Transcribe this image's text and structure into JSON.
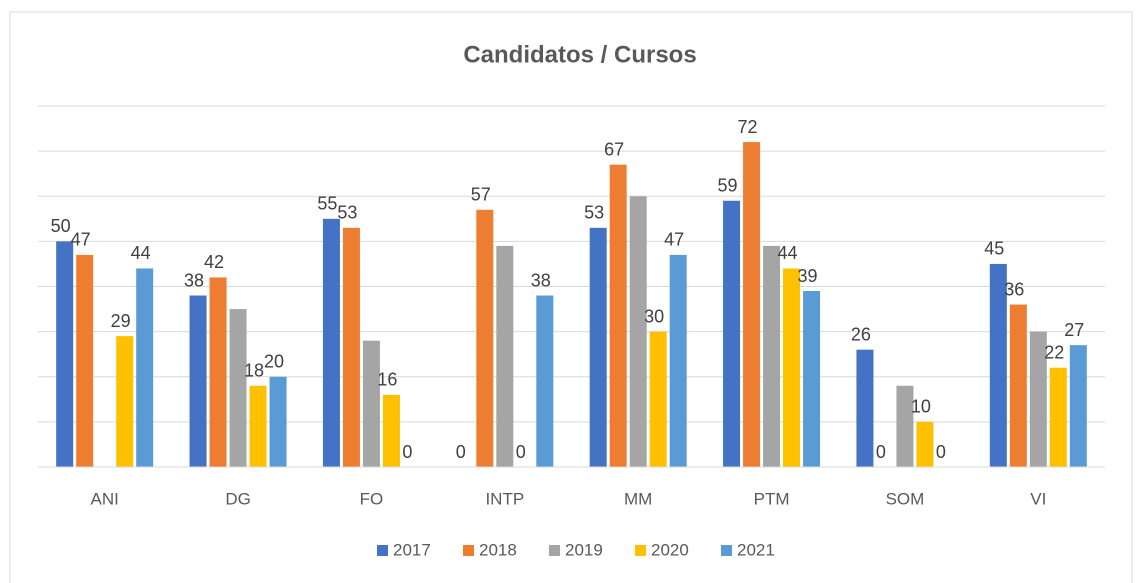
{
  "chart_data": {
    "type": "bar",
    "title": "Candidatos / Cursos",
    "categories": [
      "ANI",
      "DG",
      "FO",
      "INTP",
      "MM",
      "PTM",
      "SOM",
      "VI"
    ],
    "series": [
      {
        "name": "2017",
        "color": "#4472c4",
        "values": [
          50,
          38,
          55,
          0,
          53,
          59,
          26,
          45
        ],
        "data_labels": true
      },
      {
        "name": "2018",
        "color": "#ed7d31",
        "values": [
          47,
          42,
          53,
          57,
          67,
          72,
          0,
          36
        ],
        "data_labels": true
      },
      {
        "name": "2019",
        "color": "#a5a5a5",
        "values": [
          null,
          35,
          28,
          49,
          60,
          49,
          18,
          30
        ],
        "data_labels": false
      },
      {
        "name": "2020",
        "color": "#ffc000",
        "values": [
          29,
          18,
          16,
          0,
          30,
          44,
          10,
          22
        ],
        "data_labels": true
      },
      {
        "name": "2021",
        "color": "#5b9bd5",
        "values": [
          44,
          20,
          0,
          38,
          47,
          39,
          0,
          27
        ],
        "data_labels": true
      }
    ],
    "ylim": [
      0,
      80
    ],
    "yticks": [
      0,
      10,
      20,
      30,
      40,
      50,
      60,
      70,
      80
    ],
    "grid": true,
    "legend": "bottom"
  }
}
